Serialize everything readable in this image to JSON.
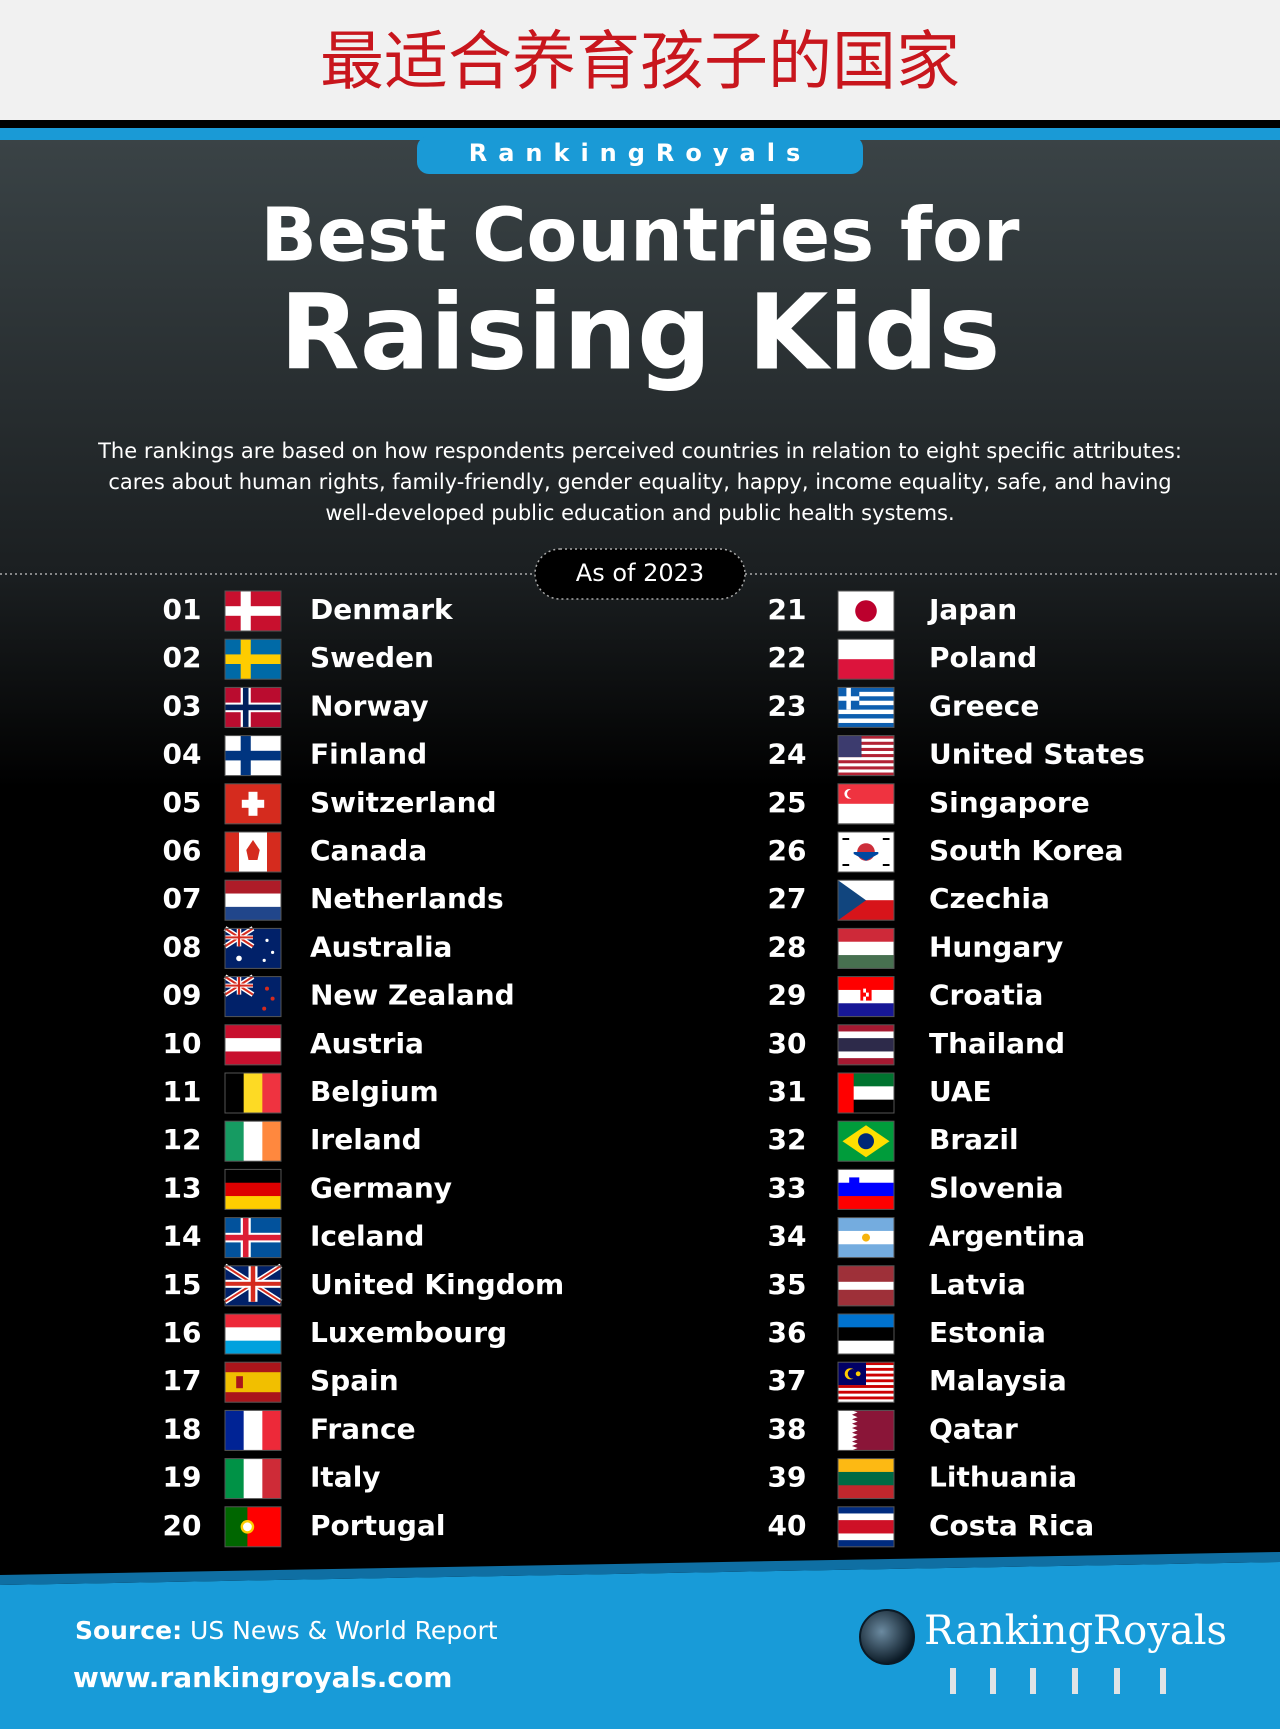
{
  "header": {
    "title": "最适合养育孩子的国家"
  },
  "brand": "RankingRoyals",
  "title_line1": "Best Countries for",
  "title_line2": "Raising Kids",
  "description": [
    "The rankings are based on how respondents perceived countries in relation to eight specific attributes:",
    "cares about human rights, family-friendly, gender equality, happy, income equality, safe, and having",
    "well-developed public education and public health systems."
  ],
  "as_of": "As of 2023",
  "rankings": [
    {
      "rank": "01",
      "country": "Denmark"
    },
    {
      "rank": "02",
      "country": "Sweden"
    },
    {
      "rank": "03",
      "country": "Norway"
    },
    {
      "rank": "04",
      "country": "Finland"
    },
    {
      "rank": "05",
      "country": "Switzerland"
    },
    {
      "rank": "06",
      "country": "Canada"
    },
    {
      "rank": "07",
      "country": "Netherlands"
    },
    {
      "rank": "08",
      "country": "Australia"
    },
    {
      "rank": "09",
      "country": "New Zealand"
    },
    {
      "rank": "10",
      "country": "Austria"
    },
    {
      "rank": "11",
      "country": "Belgium"
    },
    {
      "rank": "12",
      "country": "Ireland"
    },
    {
      "rank": "13",
      "country": "Germany"
    },
    {
      "rank": "14",
      "country": "Iceland"
    },
    {
      "rank": "15",
      "country": "United Kingdom"
    },
    {
      "rank": "16",
      "country": "Luxembourg"
    },
    {
      "rank": "17",
      "country": "Spain"
    },
    {
      "rank": "18",
      "country": "France"
    },
    {
      "rank": "19",
      "country": "Italy"
    },
    {
      "rank": "20",
      "country": "Portugal"
    },
    {
      "rank": "21",
      "country": "Japan"
    },
    {
      "rank": "22",
      "country": "Poland"
    },
    {
      "rank": "23",
      "country": "Greece"
    },
    {
      "rank": "24",
      "country": "United States"
    },
    {
      "rank": "25",
      "country": "Singapore"
    },
    {
      "rank": "26",
      "country": "South Korea"
    },
    {
      "rank": "27",
      "country": "Czechia"
    },
    {
      "rank": "28",
      "country": "Hungary"
    },
    {
      "rank": "29",
      "country": "Croatia"
    },
    {
      "rank": "30",
      "country": "Thailand"
    },
    {
      "rank": "31",
      "country": "UAE"
    },
    {
      "rank": "32",
      "country": "Brazil"
    },
    {
      "rank": "33",
      "country": "Slovenia"
    },
    {
      "rank": "34",
      "country": "Argentina"
    },
    {
      "rank": "35",
      "country": "Latvia"
    },
    {
      "rank": "36",
      "country": "Estonia"
    },
    {
      "rank": "37",
      "country": "Malaysia"
    },
    {
      "rank": "38",
      "country": "Qatar"
    },
    {
      "rank": "39",
      "country": "Lithuania"
    },
    {
      "rank": "40",
      "country": "Costa Rica"
    }
  ],
  "footer": {
    "source_label": "Source:",
    "source": " US News & World Report",
    "website": "www.rankingroyals.com",
    "logo": "RankingRoyals"
  }
}
